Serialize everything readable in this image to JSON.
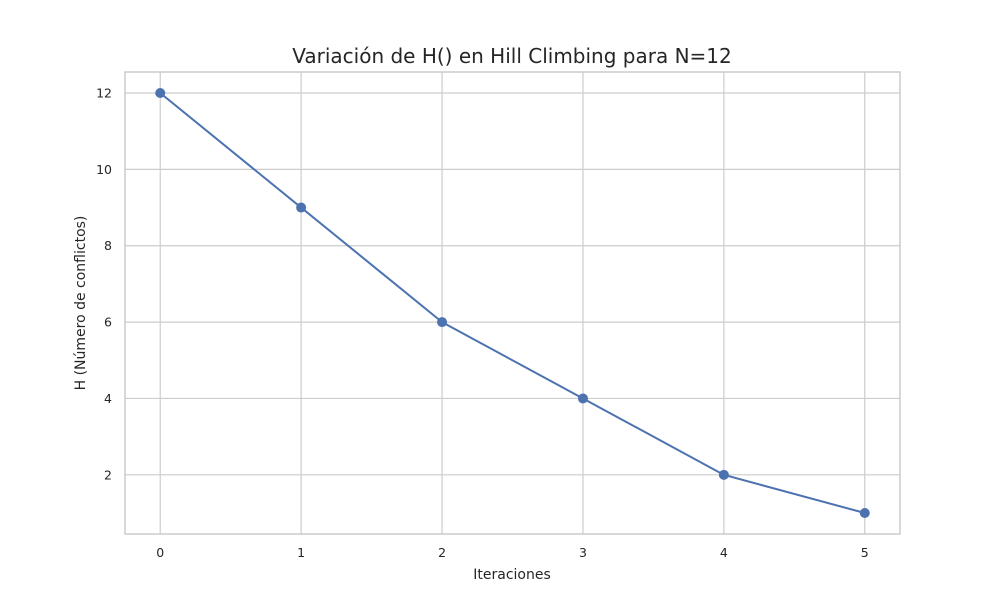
{
  "colors": {
    "series_line": "#4c72b0",
    "grid": "#cccccc",
    "text": "#262626",
    "background": "#ffffff"
  },
  "chart_data": {
    "type": "line",
    "title": "Variación de H() en Hill Climbing para N=12",
    "xlabel": "Iteraciones",
    "ylabel": "H (Número de conflictos)",
    "x": [
      0,
      1,
      2,
      3,
      4,
      5
    ],
    "series": [
      {
        "values": [
          12,
          9,
          6,
          4,
          2,
          1
        ],
        "marker": "circle",
        "color": "#4c72b0"
      }
    ],
    "xlim": [
      -0.25,
      5.25
    ],
    "ylim": [
      0.45,
      12.55
    ],
    "xticks": [
      "0",
      "1",
      "2",
      "3",
      "4",
      "5"
    ],
    "yticks": [
      "2",
      "4",
      "6",
      "8",
      "10",
      "12"
    ],
    "grid": true,
    "legend": "none"
  }
}
